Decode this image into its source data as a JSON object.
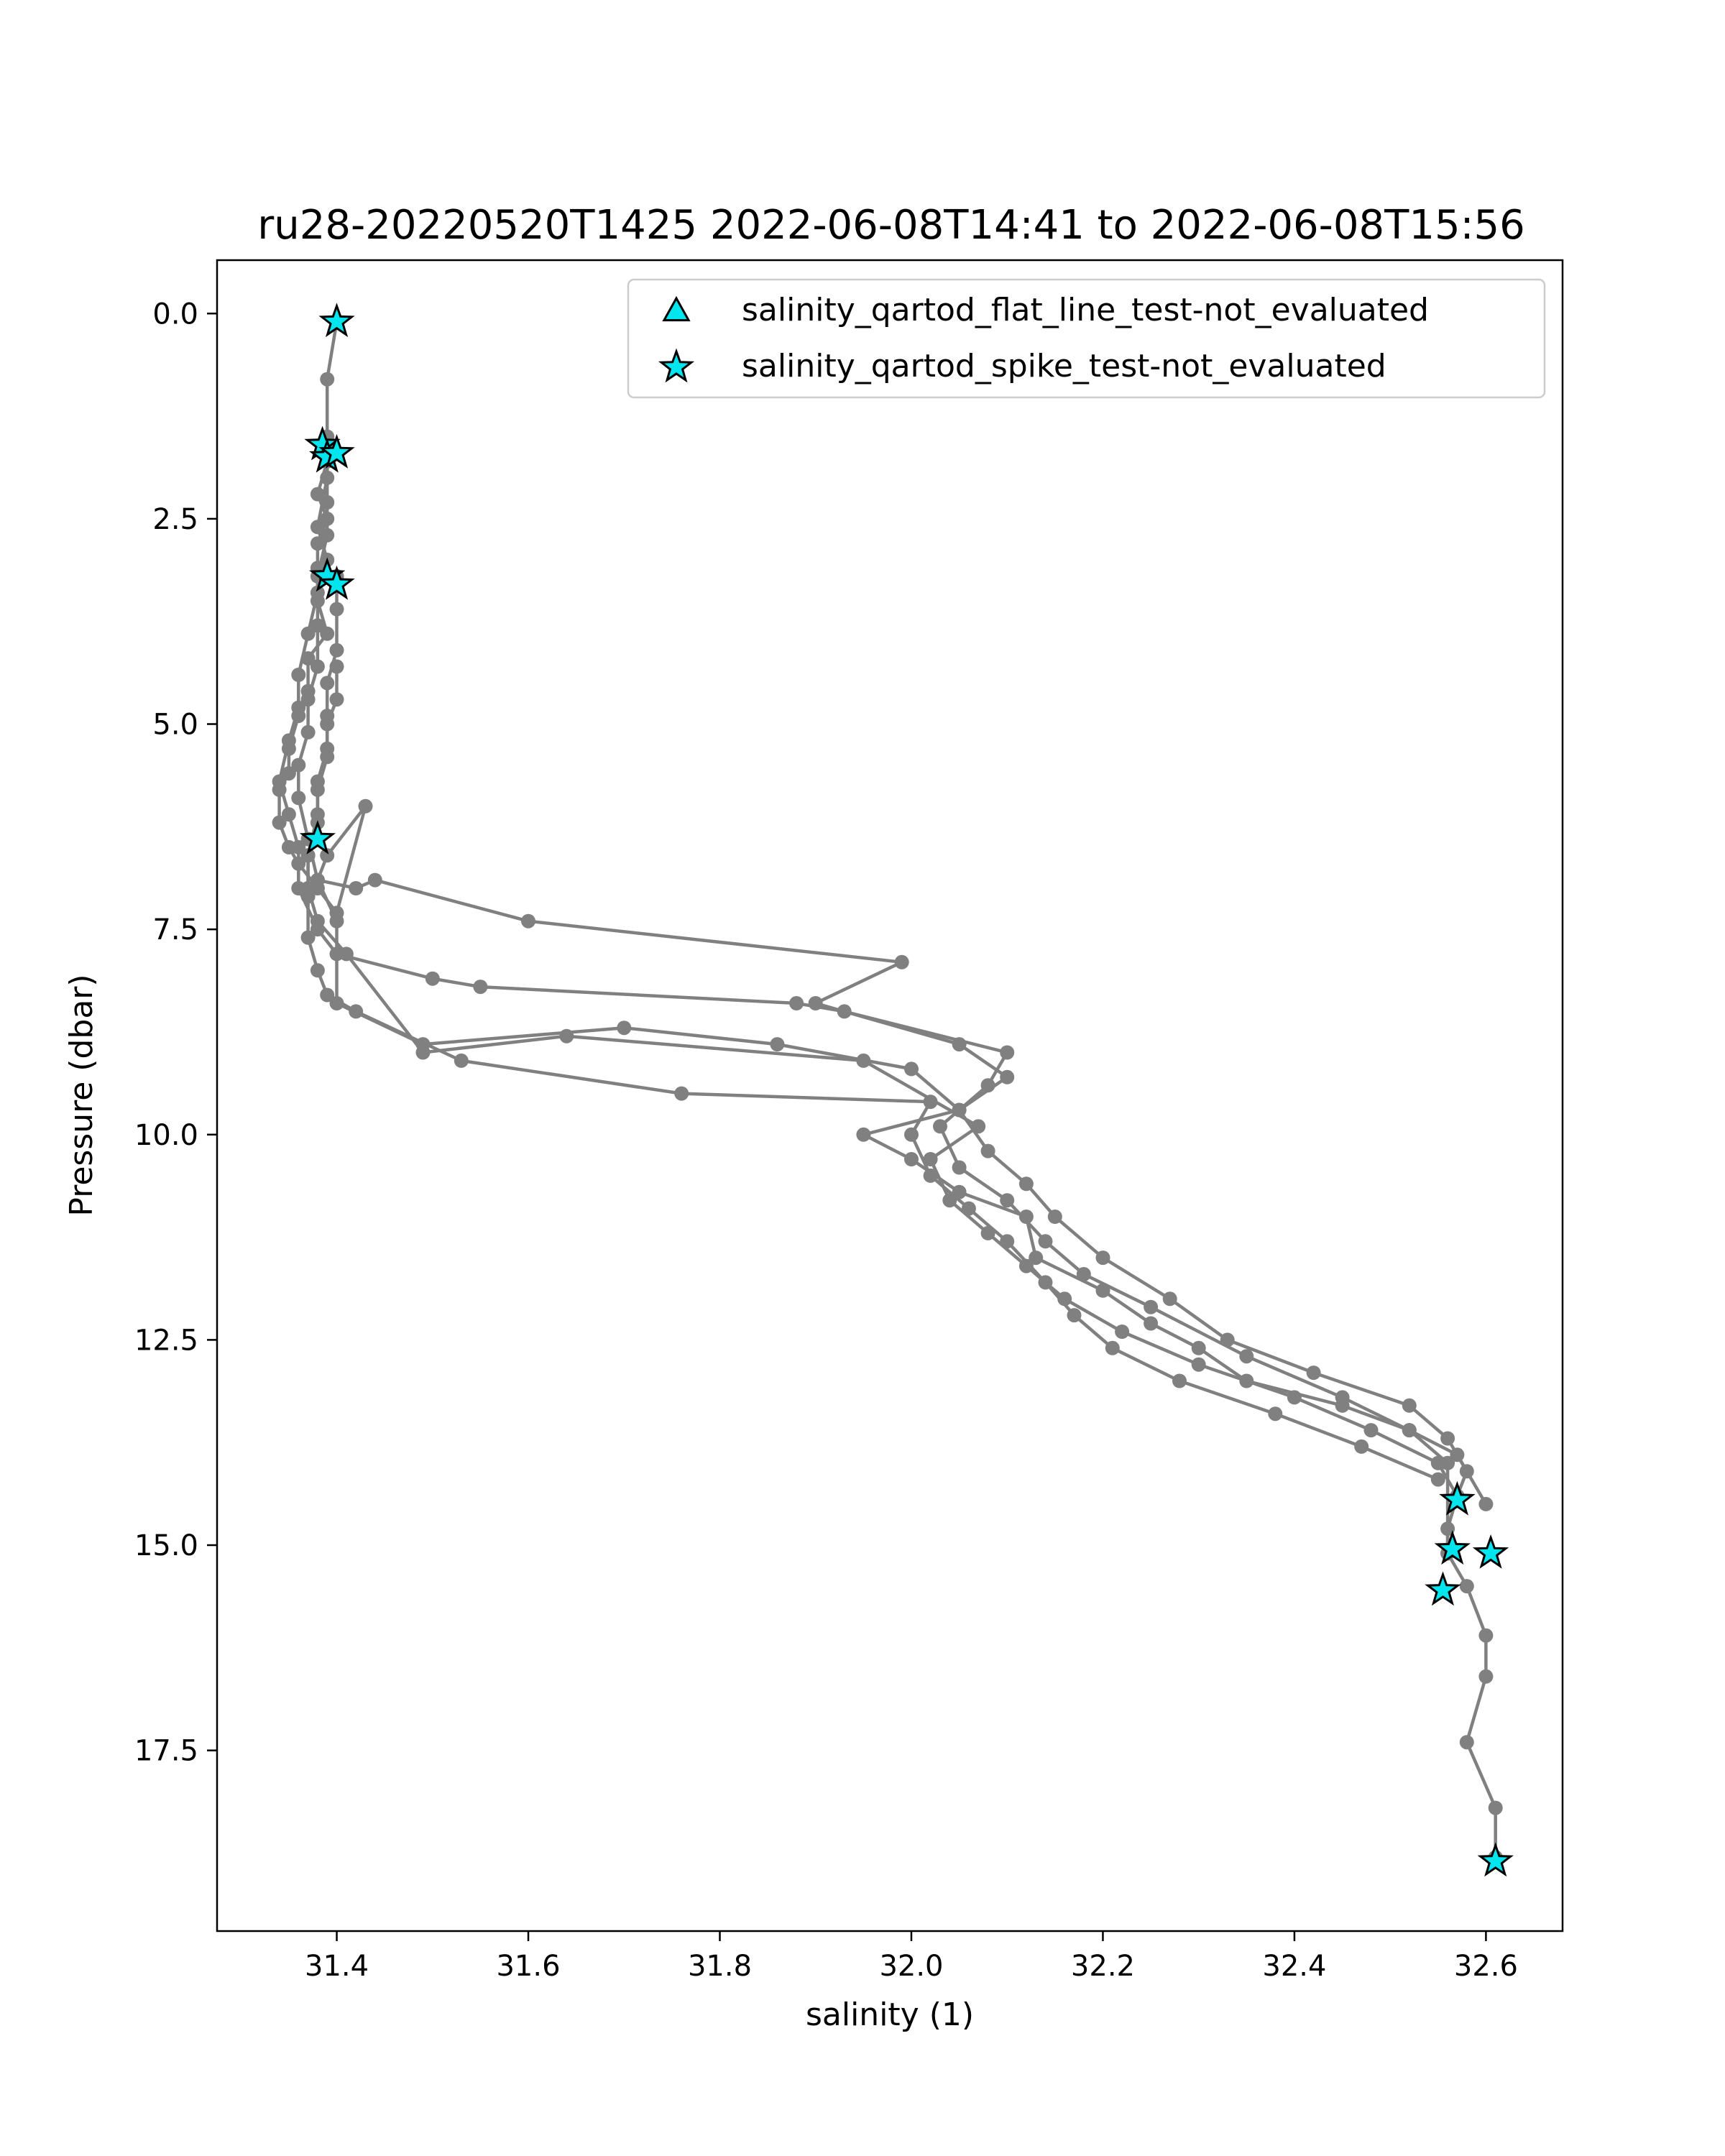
{
  "chart_data": {
    "type": "scatter",
    "title": "ru28-20220520T1425 2022-06-08T14:41 to 2022-06-08T15:56",
    "xlabel": "salinity (1)",
    "ylabel": "Pressure (dbar)",
    "xlim": [
      31.275,
      32.68
    ],
    "ylim": [
      19.7,
      -0.65
    ],
    "y_inverted": true,
    "grid": false,
    "legend_placement": "top-right",
    "xticks": [
      "31.4",
      "31.6",
      "31.8",
      "32.0",
      "32.2",
      "32.4",
      "32.6"
    ],
    "yticks": [
      "0.0",
      "2.5",
      "5.0",
      "7.5",
      "10.0",
      "12.5",
      "15.0",
      "17.5"
    ],
    "profile_color": "#808080",
    "marker_color": "#00e5ee",
    "series": [
      {
        "name": "",
        "kind": "profile",
        "x": [
          31.4,
          31.39,
          31.39,
          31.39,
          31.38,
          31.39,
          31.38,
          31.38,
          31.38,
          31.39,
          31.37,
          31.37,
          31.36,
          31.35,
          31.35,
          31.34,
          31.34,
          31.35,
          31.36,
          31.38,
          31.4,
          31.43,
          31.39,
          31.38,
          31.42,
          31.44,
          31.6,
          31.99,
          31.9,
          32.05,
          32.1,
          32.05,
          31.95,
          32.0,
          32.05,
          32.12,
          32.13,
          32.2,
          32.25,
          32.3,
          32.35,
          32.45,
          32.52,
          32.57,
          32.58,
          32.57,
          32.56,
          32.56,
          32.58,
          32.6,
          32.6,
          32.58,
          32.61,
          32.61
        ],
        "y": [
          0.1,
          0.8,
          1.5,
          1.8,
          2.2,
          2.5,
          2.8,
          3.1,
          3.5,
          3.9,
          4.2,
          4.6,
          4.9,
          5.3,
          5.6,
          5.8,
          6.2,
          6.5,
          6.7,
          7.0,
          7.3,
          6.0,
          6.6,
          6.9,
          7.0,
          6.9,
          7.4,
          7.9,
          8.4,
          8.9,
          9.3,
          9.7,
          10.0,
          10.3,
          10.7,
          11.0,
          11.5,
          11.9,
          12.3,
          12.6,
          13.0,
          13.3,
          13.6,
          13.9,
          14.1,
          14.4,
          14.8,
          15.1,
          15.5,
          16.1,
          16.6,
          17.4,
          18.2,
          18.8
        ]
      },
      {
        "name": "",
        "kind": "profile",
        "x": [
          31.39,
          31.39,
          31.38,
          31.39,
          31.38,
          31.37,
          31.36,
          31.36,
          31.35,
          31.34,
          31.35,
          31.36,
          31.36,
          31.38,
          31.4,
          31.5,
          31.55,
          31.88,
          31.93,
          32.1,
          32.08,
          32.03,
          32.05,
          32.1,
          32.14,
          32.18,
          32.25,
          32.35,
          32.45,
          32.52,
          32.56,
          32.56
        ],
        "y": [
          1.6,
          2.0,
          2.6,
          3.0,
          3.4,
          3.9,
          4.4,
          4.8,
          5.2,
          5.7,
          6.1,
          6.5,
          7.0,
          7.5,
          7.8,
          8.1,
          8.2,
          8.4,
          8.5,
          9.0,
          9.4,
          9.9,
          10.4,
          10.8,
          11.3,
          11.7,
          12.1,
          12.7,
          13.2,
          13.6,
          14.0,
          15.1
        ]
      },
      {
        "name": "",
        "kind": "profile",
        "x": [
          31.39,
          31.39,
          31.39,
          31.38,
          31.38,
          31.38,
          31.37,
          31.37,
          31.36,
          31.36,
          31.37,
          31.38,
          31.4,
          31.4,
          31.49,
          31.7,
          31.86,
          32.0,
          32.05,
          32.08,
          32.12,
          32.15,
          32.2,
          32.27,
          32.33,
          32.42,
          32.52,
          32.56,
          32.6
        ],
        "y": [
          1.8,
          2.3,
          2.7,
          3.2,
          3.8,
          4.3,
          4.7,
          5.1,
          5.5,
          5.9,
          6.4,
          6.9,
          7.4,
          8.4,
          8.9,
          8.7,
          8.9,
          9.2,
          9.7,
          10.2,
          10.6,
          11.0,
          11.5,
          12.0,
          12.5,
          12.9,
          13.3,
          13.7,
          14.5
        ]
      },
      {
        "name": "",
        "kind": "profile",
        "x": [
          31.4,
          31.4,
          31.4,
          31.39,
          31.39,
          31.39,
          31.38,
          31.38,
          31.37,
          31.37,
          31.37,
          31.38,
          31.39,
          31.42,
          31.53,
          31.76,
          32.02,
          32.0,
          32.02,
          32.06,
          32.1,
          32.14,
          32.17,
          32.21,
          32.28,
          32.38,
          32.47,
          32.55
        ],
        "y": [
          3.2,
          3.6,
          4.1,
          4.5,
          4.9,
          5.3,
          5.7,
          6.1,
          6.6,
          7.1,
          7.6,
          8.0,
          8.3,
          8.5,
          9.1,
          9.5,
          9.6,
          10.0,
          10.5,
          10.9,
          11.3,
          11.8,
          12.2,
          12.6,
          13.0,
          13.4,
          13.8,
          14.2
        ]
      },
      {
        "name": "",
        "kind": "profile",
        "x": [
          31.4,
          31.4,
          31.39,
          31.39,
          31.38,
          31.38,
          31.37,
          31.37,
          31.38,
          31.41,
          31.49,
          31.64,
          31.95,
          32.07,
          32.02,
          32.04,
          32.08,
          32.12,
          32.16,
          32.22,
          32.3,
          32.4,
          32.48,
          32.55,
          32.57
        ],
        "y": [
          4.3,
          4.7,
          5.0,
          5.4,
          5.8,
          6.2,
          6.6,
          7.0,
          7.4,
          7.8,
          9.0,
          8.8,
          9.1,
          9.9,
          10.3,
          10.8,
          11.2,
          11.6,
          12.0,
          12.4,
          12.8,
          13.2,
          13.6,
          14.0,
          14.4
        ]
      },
      {
        "name": "salinity_qartod_flat_line_test-not_evaluated",
        "kind": "marker",
        "marker": "triangle",
        "x": [],
        "y": []
      },
      {
        "name": "salinity_qartod_spike_test-not_evaluated",
        "kind": "marker",
        "marker": "star",
        "x": [
          31.4,
          31.385,
          31.39,
          31.4,
          31.39,
          31.4,
          31.38,
          32.57,
          32.565,
          32.605,
          32.555,
          32.61
        ],
        "y": [
          0.1,
          1.6,
          1.75,
          1.7,
          3.2,
          3.3,
          6.4,
          14.45,
          15.05,
          15.1,
          15.55,
          18.85
        ]
      }
    ]
  }
}
